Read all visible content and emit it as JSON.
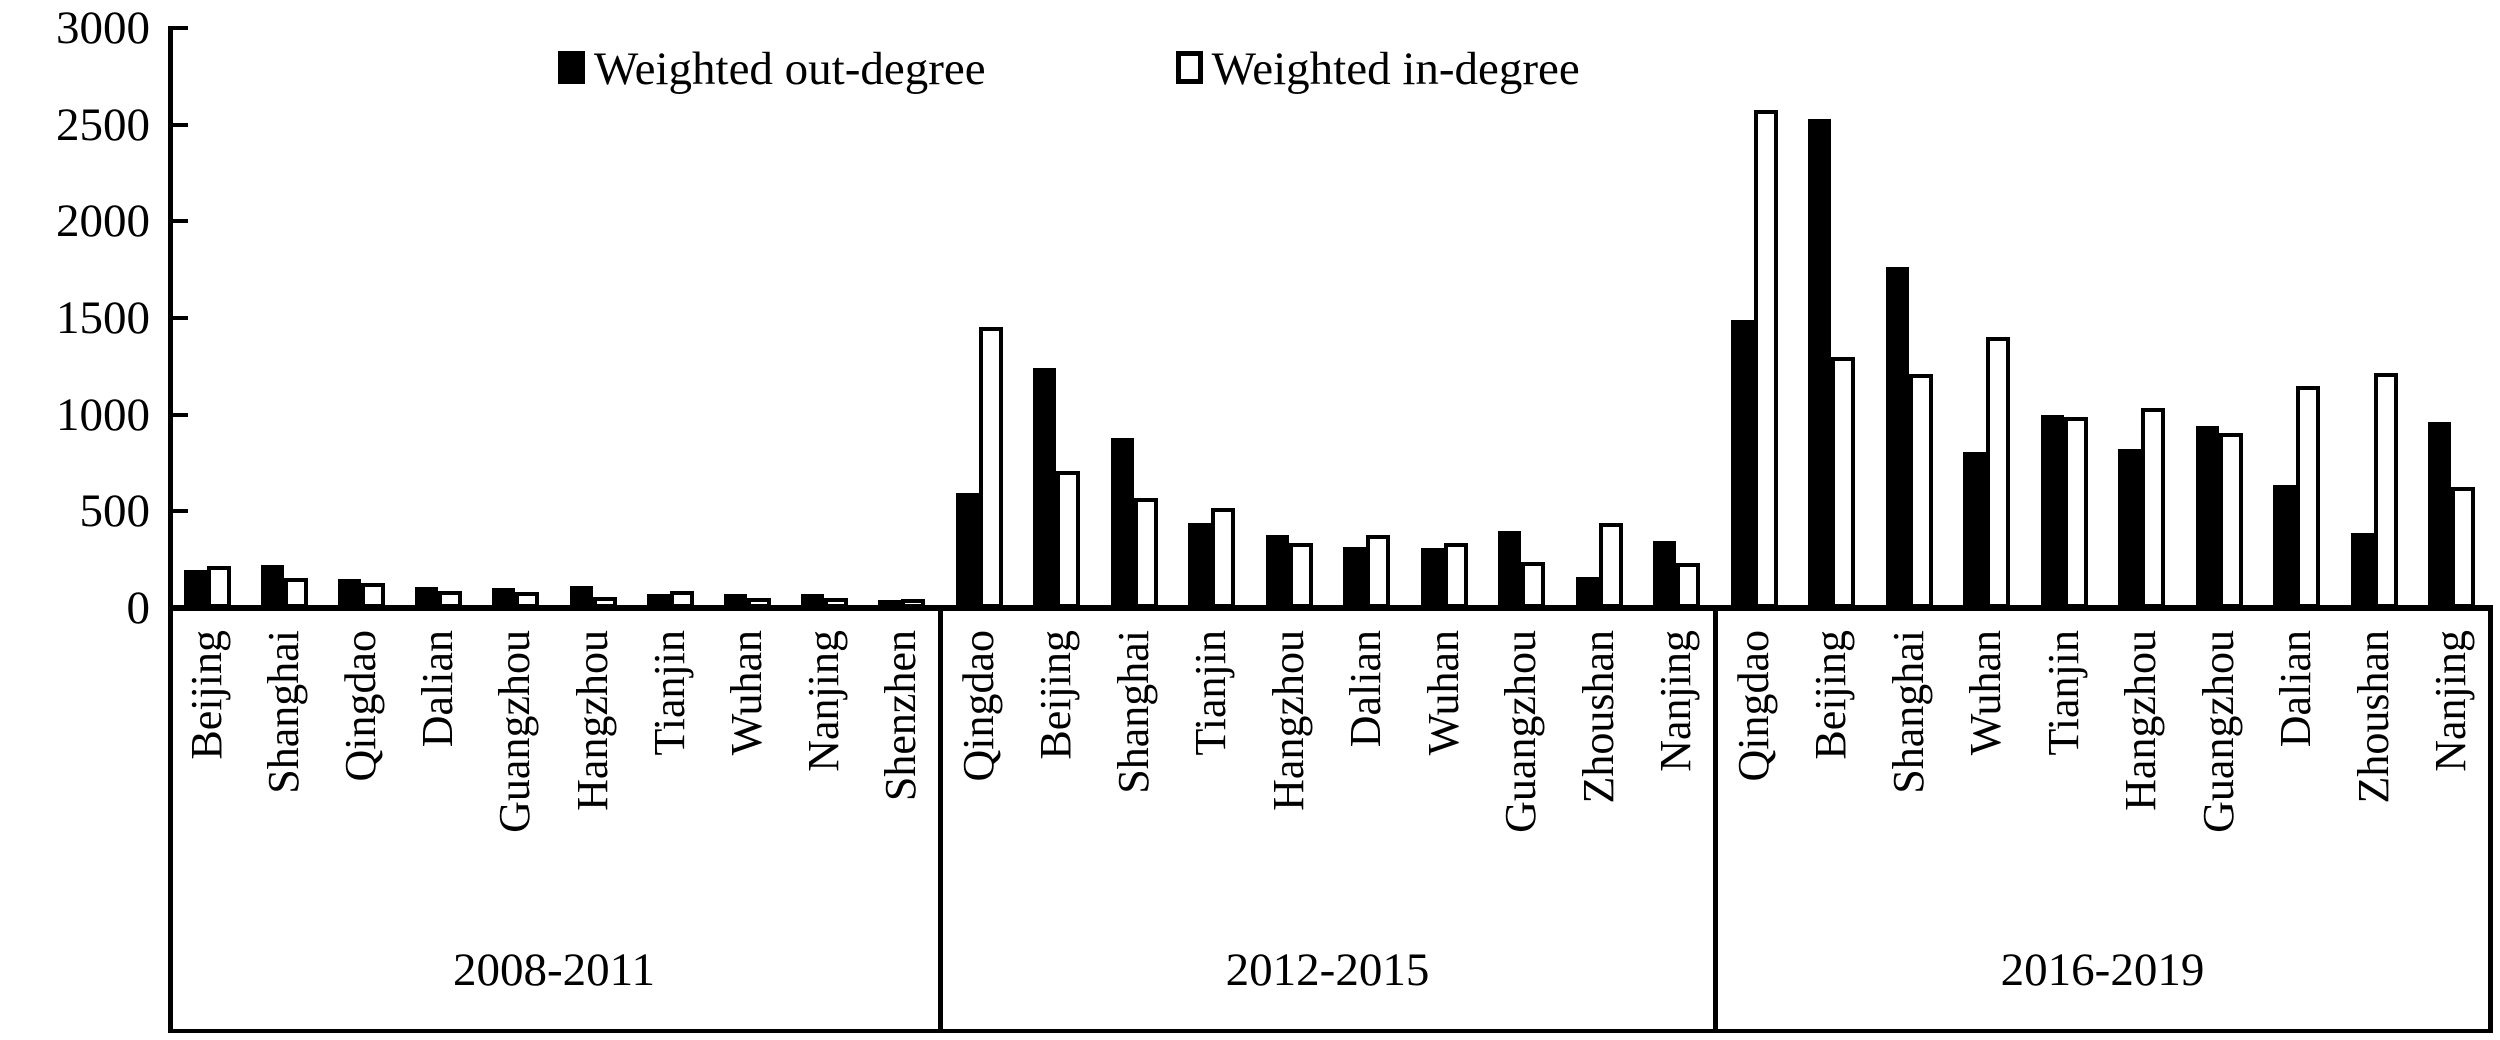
{
  "colors": {
    "bar_fill": "#000000",
    "bar_outline": "#000000",
    "background": "#ffffff",
    "text": "#000000"
  },
  "chart_data": {
    "type": "bar",
    "title": "",
    "xlabel": "",
    "ylabel": "",
    "ylim": [
      0,
      3000
    ],
    "yticks": [
      0,
      500,
      1000,
      1500,
      2000,
      2500,
      3000
    ],
    "grid": "off",
    "legend_position": "top-center",
    "legend": [
      "Weighted out-degree",
      "Weighted in-degree"
    ],
    "series_names": [
      "Weighted out-degree",
      "Weighted in-degree"
    ],
    "groups": [
      {
        "period": "2008-2011",
        "cities": [
          "Beijing",
          "Shanghai",
          "Qingdao",
          "Dalian",
          "Guangzhou",
          "Hangzhou",
          "Tianjin",
          "Wuhan",
          "Nanjing",
          "Shenzhen"
        ],
        "out_degree": [
          195,
          220,
          150,
          110,
          105,
          115,
          70,
          70,
          70,
          40
        ],
        "in_degree": [
          215,
          155,
          130,
          90,
          85,
          55,
          90,
          50,
          50,
          45
        ]
      },
      {
        "period": "2012-2015",
        "cities": [
          "Qingdao",
          "Beijing",
          "Shanghai",
          "Tianjin",
          "Hangzhou",
          "Dalian",
          "Wuhan",
          "Guangzhou",
          "Zhoushan",
          "Nanjing"
        ],
        "out_degree": [
          595,
          1240,
          880,
          440,
          375,
          315,
          310,
          400,
          160,
          345
        ],
        "in_degree": [
          1455,
          710,
          570,
          515,
          335,
          375,
          335,
          240,
          440,
          235
        ]
      },
      {
        "period": "2016-2019",
        "cities": [
          "Qingdao",
          "Beijing",
          "Shanghai",
          "Wuhan",
          "Tianjin",
          "Hangzhou",
          "Guangzhou",
          "Dalian",
          "Zhoushan",
          "Nanjing"
        ],
        "out_degree": [
          1490,
          2530,
          1765,
          805,
          1000,
          820,
          940,
          635,
          390,
          960
        ],
        "in_degree": [
          2575,
          1300,
          1210,
          1400,
          990,
          1035,
          905,
          1150,
          1215,
          625
        ]
      }
    ]
  }
}
